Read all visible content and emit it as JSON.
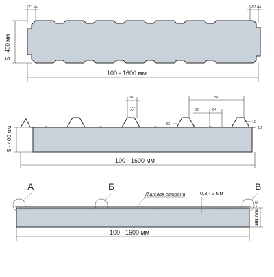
{
  "panel1": {
    "dim_left_joint": "21",
    "dim_right_joint": "22",
    "unit_small": "мм",
    "thickness": "5 - 400 мм",
    "width": "100 - 1600 мм"
  },
  "panel2": {
    "dim_68": "68",
    "dim_22": "22",
    "dim_250": "250",
    "dim_90": "90",
    "dim_64": "64",
    "dim_33": "33",
    "dim_10a": "10",
    "dim_10b": "10",
    "thickness": "5 - 400 мм",
    "width": "100 - 1600 мм"
  },
  "panel3": {
    "label_a": "А",
    "label_b": "Б",
    "label_v": "В",
    "face_side": "Лицевая сторона",
    "skin_thickness": "0,3 - 2 мм",
    "thickness": "5 - 400 мм",
    "width": "100 - 1600 мм"
  }
}
